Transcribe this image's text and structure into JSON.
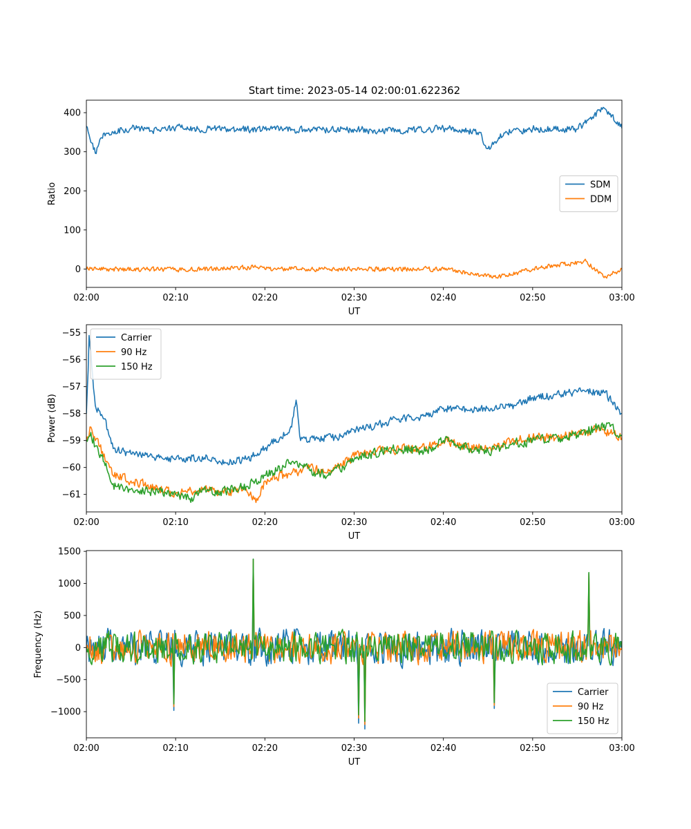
{
  "figure": {
    "suptitle": "Start time: 2023-05-14 02:00:01.622362"
  },
  "chart_data": [
    {
      "type": "line",
      "title": "Start time: 2023-05-14 02:00:01.622362",
      "xlabel": "UT",
      "ylabel": "Ratio",
      "xlim": [
        "02:00",
        "03:00"
      ],
      "xticks": [
        "02:00",
        "02:10",
        "02:20",
        "02:30",
        "02:40",
        "02:50",
        "03:00"
      ],
      "ylim": [
        -47,
        432
      ],
      "yticks": [
        0,
        100,
        200,
        300,
        400
      ],
      "ytick_labels": [
        "0",
        "100",
        "200",
        "300",
        "400"
      ],
      "legend_placement": "center-right",
      "series": [
        {
          "name": "SDM",
          "color": "#1f77b4",
          "noise_amplitude": 15,
          "points": [
            [
              "02:00",
              365
            ],
            [
              "02:01",
              296
            ],
            [
              "02:02",
              348
            ],
            [
              "02:05",
              360
            ],
            [
              "02:08",
              355
            ],
            [
              "02:10",
              362
            ],
            [
              "02:15",
              357
            ],
            [
              "02:20",
              358
            ],
            [
              "02:25",
              355
            ],
            [
              "02:30",
              358
            ],
            [
              "02:33",
              352
            ],
            [
              "02:40",
              360
            ],
            [
              "02:44",
              350
            ],
            [
              "02:45",
              308
            ],
            [
              "02:47",
              352
            ],
            [
              "02:50",
              358
            ],
            [
              "02:55",
              358
            ],
            [
              "02:58",
              412
            ],
            [
              "03:00",
              360
            ]
          ]
        },
        {
          "name": "DDM",
          "color": "#ff7f0e",
          "noise_amplitude": 10,
          "points": [
            [
              "02:00",
              0
            ],
            [
              "02:10",
              -2
            ],
            [
              "02:19",
              5
            ],
            [
              "02:20",
              0
            ],
            [
              "02:30",
              0
            ],
            [
              "02:40",
              0
            ],
            [
              "02:46",
              -22
            ],
            [
              "02:50",
              0
            ],
            [
              "02:56",
              20
            ],
            [
              "02:58",
              -22
            ],
            [
              "03:00",
              0
            ]
          ]
        }
      ]
    },
    {
      "type": "line",
      "title": "",
      "xlabel": "UT",
      "ylabel": "Power (dB)",
      "xlim": [
        "02:00",
        "03:00"
      ],
      "xticks": [
        "02:00",
        "02:10",
        "02:20",
        "02:30",
        "02:40",
        "02:50",
        "03:00"
      ],
      "ylim": [
        -61.65,
        -54.7
      ],
      "yticks": [
        -61,
        -60,
        -59,
        -58,
        -57,
        -56,
        -55
      ],
      "ytick_labels": [
        "−61",
        "−60",
        "−59",
        "−58",
        "−57",
        "−56",
        "−55"
      ],
      "legend_placement": "upper-left",
      "series": [
        {
          "name": "Carrier",
          "color": "#1f77b4",
          "noise_amplitude": 0.25,
          "points": [
            [
              "02:00",
              -58.0
            ],
            [
              "02:00:20",
              -55.1
            ],
            [
              "02:01",
              -57.7
            ],
            [
              "02:02",
              -58.2
            ],
            [
              "02:03",
              -59.3
            ],
            [
              "02:05",
              -59.5
            ],
            [
              "02:08",
              -59.6
            ],
            [
              "02:10",
              -59.7
            ],
            [
              "02:13",
              -59.6
            ],
            [
              "02:15",
              -59.8
            ],
            [
              "02:18",
              -59.7
            ],
            [
              "02:20",
              -59.3
            ],
            [
              "02:23",
              -58.5
            ],
            [
              "02:23:30",
              -57.5
            ],
            [
              "02:24",
              -59.0
            ],
            [
              "02:26",
              -58.9
            ],
            [
              "02:28",
              -58.9
            ],
            [
              "02:30",
              -58.6
            ],
            [
              "02:33",
              -58.4
            ],
            [
              "02:35",
              -58.2
            ],
            [
              "02:38",
              -58.1
            ],
            [
              "02:40",
              -57.8
            ],
            [
              "02:43",
              -57.9
            ],
            [
              "02:45",
              -57.8
            ],
            [
              "02:48",
              -57.7
            ],
            [
              "02:50",
              -57.4
            ],
            [
              "02:53",
              -57.3
            ],
            [
              "02:55",
              -57.2
            ],
            [
              "02:58",
              -57.2
            ],
            [
              "03:00",
              -58.0
            ]
          ]
        },
        {
          "name": "90 Hz",
          "color": "#ff7f0e",
          "noise_amplitude": 0.3,
          "points": [
            [
              "02:00",
              -59.0
            ],
            [
              "02:00:30",
              -58.5
            ],
            [
              "02:01",
              -59.0
            ],
            [
              "02:02",
              -59.5
            ],
            [
              "02:03",
              -60.3
            ],
            [
              "02:05",
              -60.5
            ],
            [
              "02:08",
              -60.8
            ],
            [
              "02:10",
              -61.0
            ],
            [
              "02:13",
              -60.8
            ],
            [
              "02:15",
              -60.9
            ],
            [
              "02:18",
              -60.9
            ],
            [
              "02:19",
              -61.3
            ],
            [
              "02:20",
              -60.5
            ],
            [
              "02:23",
              -60.2
            ],
            [
              "02:25",
              -60.0
            ],
            [
              "02:27",
              -60.2
            ],
            [
              "02:30",
              -59.6
            ],
            [
              "02:33",
              -59.4
            ],
            [
              "02:35",
              -59.3
            ],
            [
              "02:38",
              -59.3
            ],
            [
              "02:40",
              -59.0
            ],
            [
              "02:43",
              -59.3
            ],
            [
              "02:45",
              -59.3
            ],
            [
              "02:48",
              -59.0
            ],
            [
              "02:50",
              -58.9
            ],
            [
              "02:53",
              -58.9
            ],
            [
              "02:55",
              -58.7
            ],
            [
              "02:58",
              -58.6
            ],
            [
              "03:00",
              -58.9
            ]
          ]
        },
        {
          "name": "150 Hz",
          "color": "#2ca02c",
          "noise_amplitude": 0.3,
          "points": [
            [
              "02:00",
              -59.0
            ],
            [
              "02:00:30",
              -58.7
            ],
            [
              "02:01",
              -59.2
            ],
            [
              "02:02",
              -59.8
            ],
            [
              "02:03",
              -60.6
            ],
            [
              "02:05",
              -60.8
            ],
            [
              "02:08",
              -60.9
            ],
            [
              "02:10",
              -61.0
            ],
            [
              "02:12",
              -61.2
            ],
            [
              "02:13",
              -60.8
            ],
            [
              "02:15",
              -60.9
            ],
            [
              "02:18",
              -60.7
            ],
            [
              "02:20",
              -60.3
            ],
            [
              "02:23",
              -59.8
            ],
            [
              "02:25",
              -60.1
            ],
            [
              "02:27",
              -60.3
            ],
            [
              "02:30",
              -59.7
            ],
            [
              "02:33",
              -59.4
            ],
            [
              "02:35",
              -59.3
            ],
            [
              "02:38",
              -59.4
            ],
            [
              "02:40",
              -59.0
            ],
            [
              "02:43",
              -59.3
            ],
            [
              "02:45",
              -59.4
            ],
            [
              "02:48",
              -59.1
            ],
            [
              "02:50",
              -59.0
            ],
            [
              "02:53",
              -58.9
            ],
            [
              "02:55",
              -58.8
            ],
            [
              "02:58",
              -58.4
            ],
            [
              "03:00",
              -58.8
            ]
          ]
        }
      ]
    },
    {
      "type": "line",
      "title": "",
      "xlabel": "UT",
      "ylabel": "Frequency (Hz)",
      "xlim": [
        "02:00",
        "03:00"
      ],
      "xticks": [
        "02:00",
        "02:10",
        "02:20",
        "02:30",
        "02:40",
        "02:50",
        "03:00"
      ],
      "ylim": [
        -1408,
        1512
      ],
      "yticks": [
        -1000,
        -500,
        0,
        500,
        1000,
        1500
      ],
      "ytick_labels": [
        "−1000",
        "−500",
        "0",
        "500",
        "1000",
        "1500"
      ],
      "legend_placement": "lower-right",
      "series": [
        {
          "name": "Carrier",
          "color": "#1f77b4",
          "noise_amplitude": 450,
          "peaks": [
            [
              "02:09:50",
              -980
            ],
            [
              "02:18:40",
              1380
            ],
            [
              "02:30:30",
              -1180
            ],
            [
              "02:31:10",
              -1270
            ],
            [
              "02:45:40",
              -950
            ],
            [
              "02:56:20",
              1160
            ]
          ],
          "points": [
            [
              "02:00",
              0
            ],
            [
              "03:00",
              0
            ]
          ]
        },
        {
          "name": "90 Hz",
          "color": "#ff7f0e",
          "noise_amplitude": 420,
          "peaks": [
            [
              "02:09:50",
              -920
            ],
            [
              "02:18:40",
              1370
            ],
            [
              "02:30:30",
              -1100
            ],
            [
              "02:31:10",
              -1200
            ],
            [
              "02:45:40",
              -900
            ],
            [
              "02:56:20",
              1160
            ]
          ],
          "points": [
            [
              "02:00",
              0
            ],
            [
              "03:00",
              0
            ]
          ]
        },
        {
          "name": "150 Hz",
          "color": "#2ca02c",
          "noise_amplitude": 400,
          "peaks": [
            [
              "02:09:50",
              -880
            ],
            [
              "02:18:40",
              1380
            ],
            [
              "02:30:30",
              -1050
            ],
            [
              "02:31:10",
              -1150
            ],
            [
              "02:45:40",
              -860
            ],
            [
              "02:56:20",
              1170
            ]
          ],
          "points": [
            [
              "02:00",
              0
            ],
            [
              "03:00",
              0
            ]
          ]
        }
      ]
    }
  ]
}
